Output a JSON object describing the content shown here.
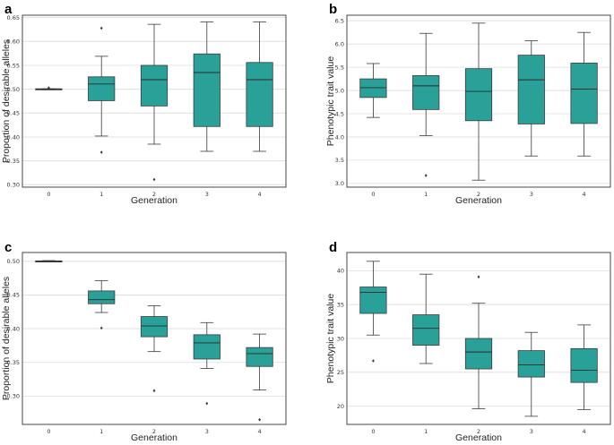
{
  "colors": {
    "box_fill": "#2aa198",
    "outlier": "#3a3a3a"
  },
  "chart_data": [
    {
      "panel": "a",
      "type": "box",
      "xlabel": "Generation",
      "ylabel": "Proportion of desirable alleles",
      "categories": [
        "0",
        "1",
        "2",
        "3",
        "4"
      ],
      "ylim": [
        0.295,
        0.655
      ],
      "yticks": [
        "0.30",
        "0.35",
        "0.40",
        "0.45",
        "0.50",
        "0.55",
        "0.60",
        "0.65"
      ],
      "grid": true,
      "boxes": [
        {
          "min": 0.499,
          "q1": 0.499,
          "median": 0.5,
          "q3": 0.501,
          "max": 0.501,
          "outliers": [
            0.503
          ]
        },
        {
          "min": 0.402,
          "q1": 0.476,
          "median": 0.511,
          "q3": 0.526,
          "max": 0.569,
          "outliers": [
            0.628,
            0.368
          ]
        },
        {
          "min": 0.385,
          "q1": 0.465,
          "median": 0.52,
          "q3": 0.55,
          "max": 0.636,
          "outliers": [
            0.311
          ]
        },
        {
          "min": 0.37,
          "q1": 0.422,
          "median": 0.535,
          "q3": 0.574,
          "max": 0.641,
          "outliers": []
        },
        {
          "min": 0.37,
          "q1": 0.422,
          "median": 0.52,
          "q3": 0.556,
          "max": 0.641,
          "outliers": []
        }
      ]
    },
    {
      "panel": "b",
      "type": "box",
      "xlabel": "Generation",
      "ylabel": "Phenotypic trait value",
      "categories": [
        "0",
        "1",
        "2",
        "3",
        "4"
      ],
      "ylim": [
        2.92,
        6.62
      ],
      "yticks": [
        "3.0",
        "3.5",
        "4.0",
        "4.5",
        "5.0",
        "5.5",
        "6.0",
        "6.5"
      ],
      "grid": true,
      "boxes": [
        {
          "min": 4.42,
          "q1": 4.85,
          "median": 5.06,
          "q3": 5.25,
          "max": 5.58,
          "outliers": []
        },
        {
          "min": 4.03,
          "q1": 4.59,
          "median": 5.1,
          "q3": 5.32,
          "max": 6.23,
          "outliers": [
            3.17
          ]
        },
        {
          "min": 3.07,
          "q1": 4.35,
          "median": 4.98,
          "q3": 5.47,
          "max": 6.45,
          "outliers": []
        },
        {
          "min": 3.59,
          "q1": 4.28,
          "median": 5.23,
          "q3": 5.76,
          "max": 6.07,
          "outliers": []
        },
        {
          "min": 3.59,
          "q1": 4.29,
          "median": 5.03,
          "q3": 5.59,
          "max": 6.25,
          "outliers": []
        }
      ]
    },
    {
      "panel": "c",
      "type": "box",
      "xlabel": "Generation",
      "ylabel": "Proportion of desirable alleles",
      "categories": [
        "0",
        "1",
        "2",
        "3",
        "4"
      ],
      "ylim": [
        0.258,
        0.513
      ],
      "yticks": [
        "0.30",
        "0.35",
        "0.40",
        "0.45",
        "0.50"
      ],
      "grid": true,
      "boxes": [
        {
          "min": 0.499,
          "q1": 0.4995,
          "median": 0.5,
          "q3": 0.5005,
          "max": 0.501,
          "outliers": []
        },
        {
          "min": 0.424,
          "q1": 0.437,
          "median": 0.443,
          "q3": 0.456,
          "max": 0.471,
          "outliers": [
            0.401
          ]
        },
        {
          "min": 0.366,
          "q1": 0.388,
          "median": 0.404,
          "q3": 0.418,
          "max": 0.434,
          "outliers": [
            0.308
          ]
        },
        {
          "min": 0.341,
          "q1": 0.355,
          "median": 0.379,
          "q3": 0.391,
          "max": 0.409,
          "outliers": [
            0.289
          ]
        },
        {
          "min": 0.309,
          "q1": 0.344,
          "median": 0.363,
          "q3": 0.372,
          "max": 0.392,
          "outliers": [
            0.265
          ]
        }
      ]
    },
    {
      "panel": "d",
      "type": "box",
      "xlabel": "Generation",
      "ylabel": "Phenotypic trait value",
      "categories": [
        "0",
        "1",
        "2",
        "3",
        "4"
      ],
      "ylim": [
        17.3,
        42.7
      ],
      "yticks": [
        "20",
        "25",
        "30",
        "35",
        "40"
      ],
      "grid": true,
      "boxes": [
        {
          "min": 30.5,
          "q1": 33.7,
          "median": 36.8,
          "q3": 37.6,
          "max": 41.4,
          "outliers": [
            26.7
          ]
        },
        {
          "min": 26.3,
          "q1": 29.0,
          "median": 31.5,
          "q3": 33.5,
          "max": 39.5,
          "outliers": []
        },
        {
          "min": 19.6,
          "q1": 25.5,
          "median": 28.0,
          "q3": 30.0,
          "max": 35.2,
          "outliers": [
            39.1
          ]
        },
        {
          "min": 18.5,
          "q1": 24.3,
          "median": 26.1,
          "q3": 28.2,
          "max": 30.9,
          "outliers": []
        },
        {
          "min": 19.5,
          "q1": 23.5,
          "median": 25.3,
          "q3": 28.5,
          "max": 32.0,
          "outliers": []
        }
      ]
    }
  ]
}
